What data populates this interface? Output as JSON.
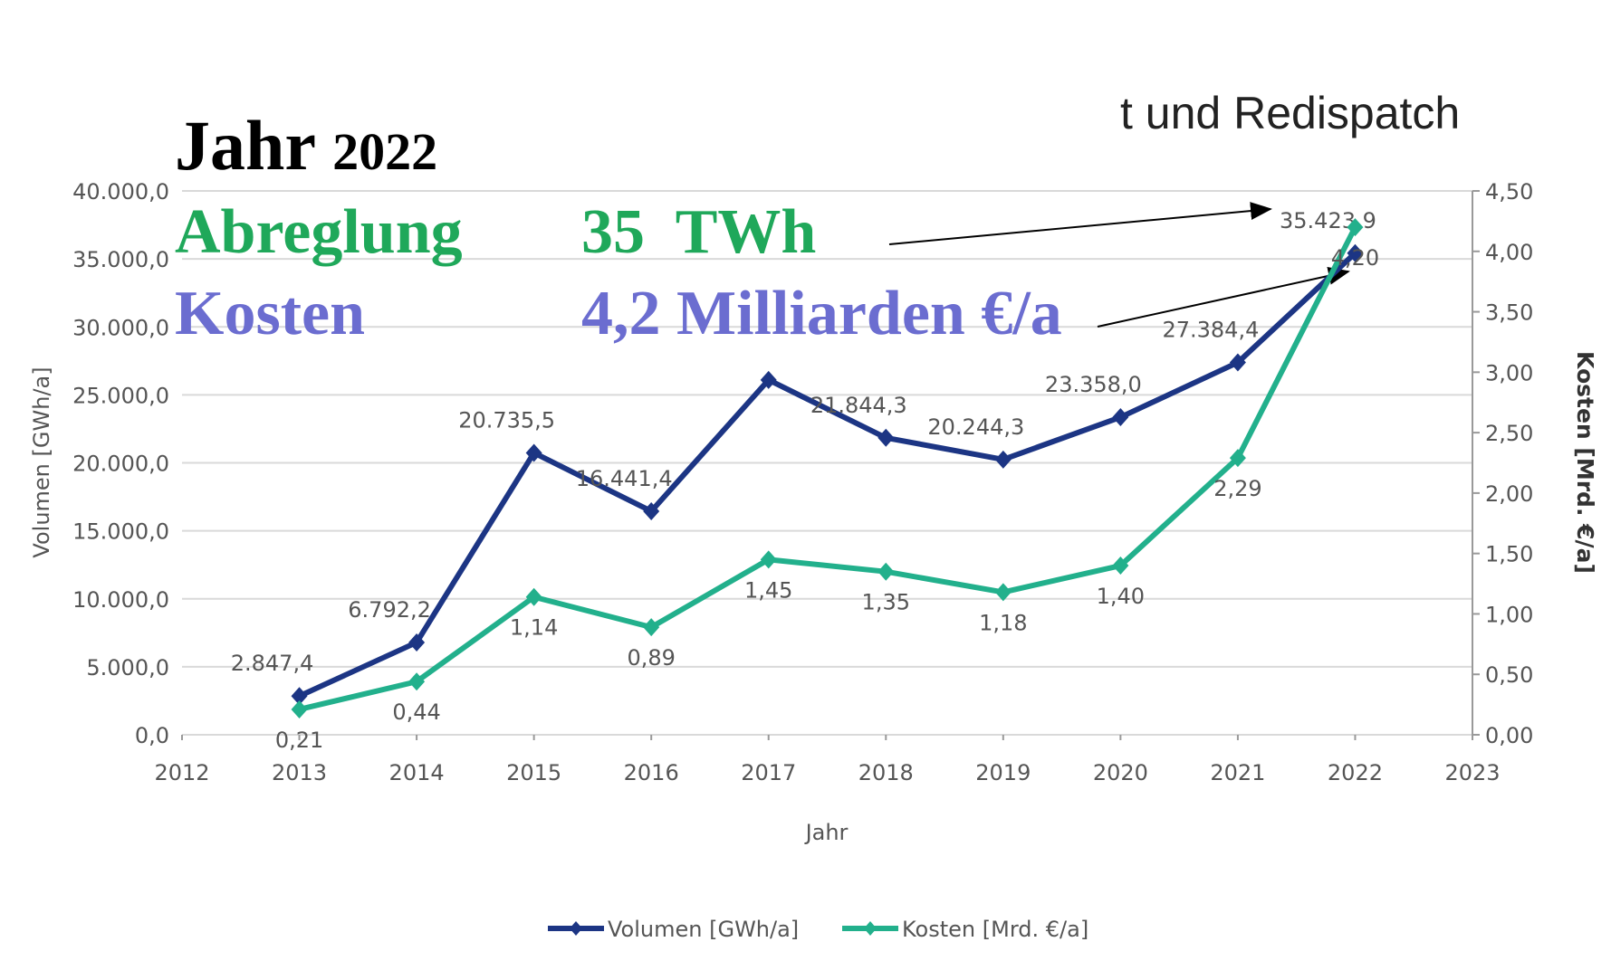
{
  "chart_data": {
    "type": "line",
    "title": "t und Redispatch",
    "annotations": {
      "jahr": "Jahr",
      "jahr_value": "2022",
      "abregelung": "Abreglung",
      "abregelung_value": "35  TWh",
      "kosten": "Kosten",
      "kosten_value": "4,2 Milliarden €/a"
    },
    "x_label": "Jahr",
    "y_label": "Volumen [GWh/a]",
    "y2_label": "Kosten [Mrd. €/a]",
    "x": [
      2013,
      2014,
      2015,
      2016,
      2017,
      2018,
      2019,
      2020,
      2021,
      2022
    ],
    "series": [
      {
        "name": "Volumen [GWh/a]",
        "color": "#1c3584",
        "values": [
          2847.4,
          6792.2,
          20735.5,
          16441.4,
          26100,
          21844.3,
          20244.3,
          23358.0,
          27384.4,
          35423.9
        ],
        "value_labels": [
          "2.847,4",
          "6.792,2",
          "20.735,5",
          "16.441,4",
          null,
          "21.844,3",
          "20.244,3",
          "23.358,0",
          "27.384,4",
          "35.423,9"
        ]
      },
      {
        "name": "Kosten [Mrd. €/a]",
        "color": "#22b08c",
        "axis": "y2",
        "values": [
          0.21,
          0.44,
          1.14,
          0.89,
          1.45,
          1.35,
          1.18,
          1.4,
          2.29,
          4.2
        ],
        "value_labels": [
          "0,21",
          "0,44",
          "1,14",
          "0,89",
          "1,45",
          "1,35",
          "1,18",
          "1,40",
          "2,29",
          "4,20"
        ]
      }
    ],
    "xlim": [
      2012,
      2023
    ],
    "xticks": [
      2012,
      2013,
      2014,
      2015,
      2016,
      2017,
      2018,
      2019,
      2020,
      2021,
      2022,
      2023
    ],
    "ylim": [
      0,
      40000
    ],
    "yticks": [
      {
        "value": 0,
        "label": "0,0"
      },
      {
        "value": 5000,
        "label": "5.000,0"
      },
      {
        "value": 10000,
        "label": "10.000,0"
      },
      {
        "value": 15000,
        "label": "15.000,0"
      },
      {
        "value": 20000,
        "label": "20.000,0"
      },
      {
        "value": 25000,
        "label": "25.000,0"
      },
      {
        "value": 30000,
        "label": "30.000,0"
      },
      {
        "value": 35000,
        "label": "35.000,0"
      },
      {
        "value": 40000,
        "label": "40.000,0"
      }
    ],
    "y2lim": [
      0,
      4.5
    ],
    "y2ticks": [
      {
        "value": 0,
        "label": "0,00"
      },
      {
        "value": 0.5,
        "label": "0,50"
      },
      {
        "value": 1,
        "label": "1,00"
      },
      {
        "value": 1.5,
        "label": "1,50"
      },
      {
        "value": 2,
        "label": "2,00"
      },
      {
        "value": 2.5,
        "label": "2,50"
      },
      {
        "value": 3,
        "label": "3,00"
      },
      {
        "value": 3.5,
        "label": "3,50"
      },
      {
        "value": 4,
        "label": "4,00"
      },
      {
        "value": 4.5,
        "label": "4,50"
      }
    ],
    "grid": true,
    "legend": "bottom"
  }
}
